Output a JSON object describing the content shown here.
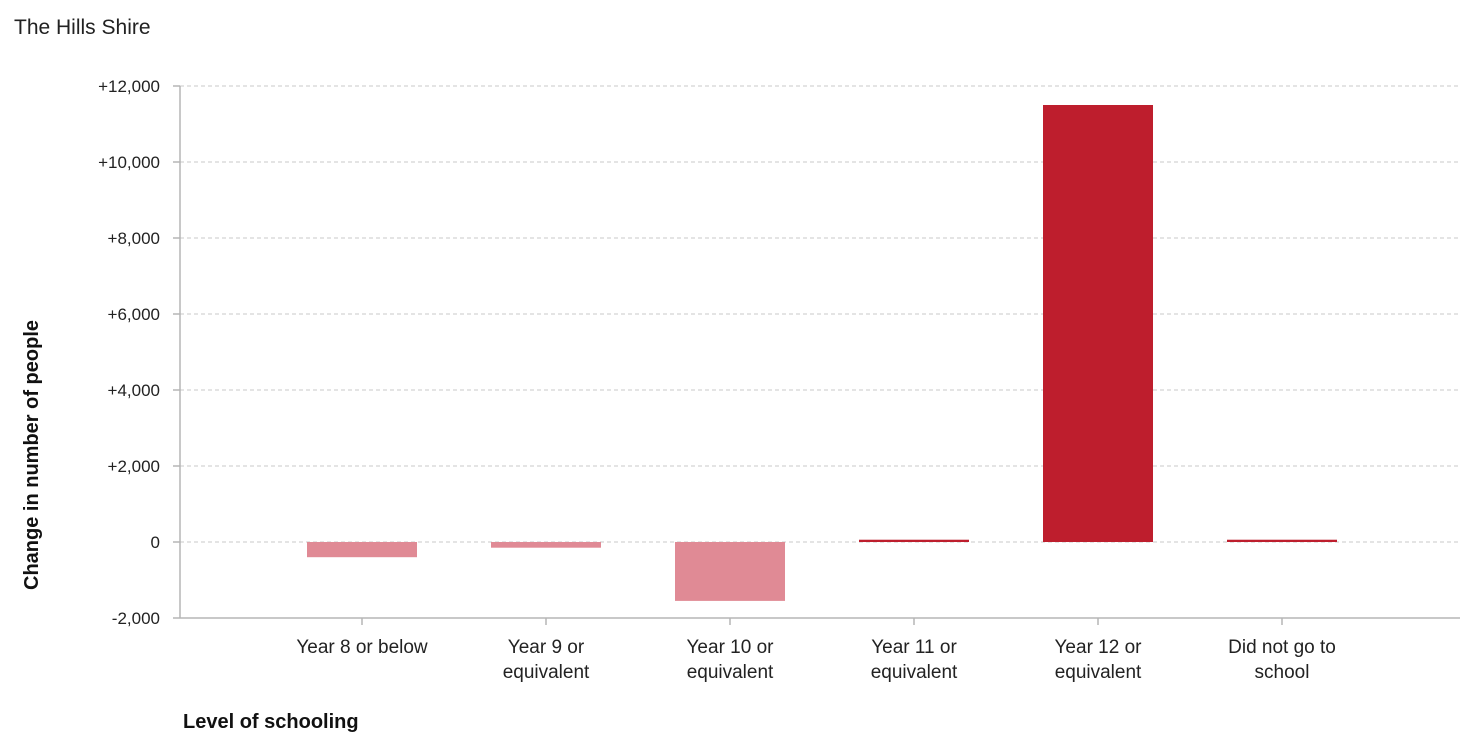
{
  "page": {
    "title": "The Hills Shire"
  },
  "chart_data": {
    "type": "bar",
    "title": "The Hills Shire",
    "xlabel": "Level of schooling",
    "ylabel": "Change in number of people",
    "ylim": [
      -2000,
      12000
    ],
    "yticks": [
      -2000,
      0,
      2000,
      4000,
      6000,
      8000,
      10000,
      12000
    ],
    "ytick_labels": [
      "-2,000",
      "0",
      "+2,000",
      "+4,000",
      "+6,000",
      "+8,000",
      "+10,000",
      "+12,000"
    ],
    "grid": true,
    "categories": [
      [
        "Year 8 or below"
      ],
      [
        "Year 9 or",
        "equivalent"
      ],
      [
        "Year 10 or",
        "equivalent"
      ],
      [
        "Year 11 or",
        "equivalent"
      ],
      [
        "Year 12 or",
        "equivalent"
      ],
      [
        "Did not go to",
        "school"
      ]
    ],
    "values": [
      -400,
      -150,
      -1550,
      60,
      11500,
      60
    ],
    "colors": {
      "positive": "#be1e2d",
      "negative": "#e08a95",
      "axis": "#b5b5b5",
      "grid": "#c8c8c8"
    }
  }
}
